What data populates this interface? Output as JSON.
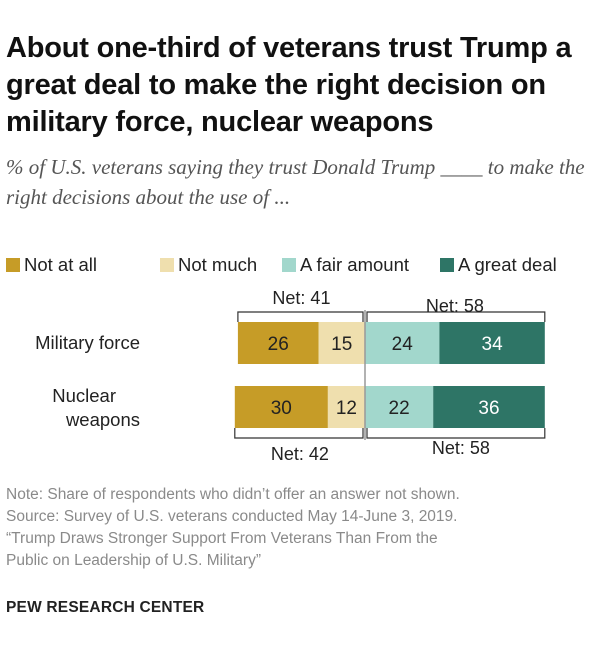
{
  "header": {
    "title": "About one-third of veterans trust Trump a great deal to make the right decision on military force, nuclear weapons",
    "subtitle": "% of U.S. veterans saying they trust Donald Trump ____ to make the right decisions about the use of ..."
  },
  "chart_data": {
    "type": "bar",
    "orientation": "horizontal-diverging-stacked",
    "legend_position": "top",
    "categories": [
      "Military force",
      "Nuclear weapons"
    ],
    "series": [
      {
        "name": "Not at all",
        "color": "#c69c27",
        "values": [
          26,
          30
        ]
      },
      {
        "name": "Not much",
        "color": "#efdfae",
        "values": [
          15,
          12
        ]
      },
      {
        "name": "A fair amount",
        "color": "#a2d7cc",
        "values": [
          24,
          22
        ]
      },
      {
        "name": "A great deal",
        "color": "#2e7566",
        "values": [
          34,
          36
        ]
      }
    ],
    "nets": [
      {
        "row": "Military force",
        "negative_label": "Net: 41",
        "positive_label": "Net: 58"
      },
      {
        "row": "Nuclear weapons",
        "negative_label": "Net: 42",
        "positive_label": "Net: 58"
      }
    ]
  },
  "notes": [
    "Note: Share of respondents who didn’t offer an answer not shown.",
    "Source: Survey of U.S. veterans conducted May 14-June 3, 2019.",
    "“Trump Draws Stronger Support From Veterans Than From the",
    "Public on Leadership of U.S. Military”"
  ],
  "brand": "PEW RESEARCH CENTER"
}
